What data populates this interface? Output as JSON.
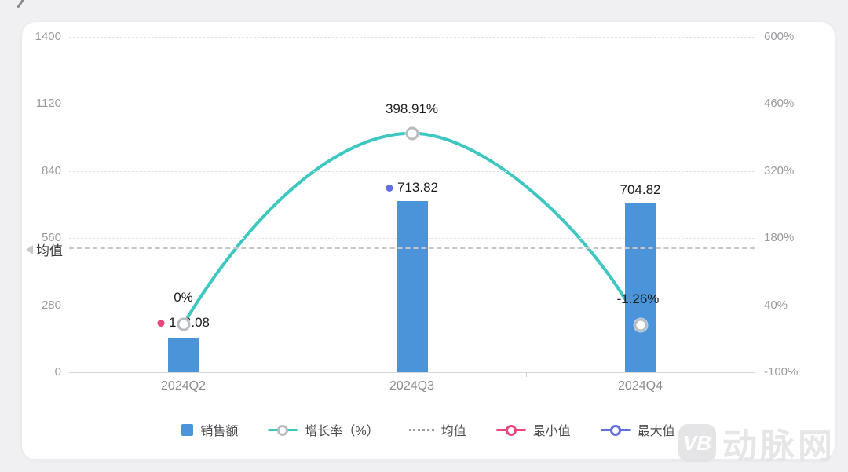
{
  "page": {
    "background": "#f0f0f2",
    "card_background": "#ffffff"
  },
  "chart_data": {
    "type": "bar",
    "subtype": "bar+line combo",
    "categories": [
      "2024Q2",
      "2024Q3",
      "2024Q4"
    ],
    "series": [
      {
        "name": "销售额",
        "type": "bar",
        "color": "#4b94d9",
        "values": [
          143.08,
          713.82,
          704.82
        ],
        "labels": [
          "143.08",
          "713.82",
          "704.82"
        ]
      },
      {
        "name": "增长率（%）",
        "type": "line",
        "color": "#3ec6c1",
        "values": [
          0,
          398.91,
          -1.26
        ],
        "labels": [
          "0%",
          "398.91%",
          "-1.26%"
        ]
      }
    ],
    "left_axis": {
      "ticks": [
        "1400",
        "1120",
        "840",
        "560",
        "280",
        "0"
      ],
      "min": 0,
      "max": 1400
    },
    "right_axis": {
      "ticks": [
        "600%",
        "460%",
        "320%",
        "180%",
        "40%",
        "-100%"
      ],
      "min": -100,
      "max": 600
    },
    "mean": {
      "label": "均值",
      "value": 520.57
    },
    "min_marker": {
      "category_index": 0,
      "color": "#e8477d"
    },
    "max_marker": {
      "category_index": 1,
      "color": "#5f6ee0"
    },
    "legend": [
      {
        "label": "销售额",
        "swatch": "bar",
        "color": "#4b94d9"
      },
      {
        "label": "增长率（%）",
        "swatch": "line",
        "color": "#3ec6c1"
      },
      {
        "label": "均值",
        "swatch": "dash",
        "color": "#9d9da1"
      },
      {
        "label": "最小值",
        "swatch": "ring",
        "color": "#e8477d"
      },
      {
        "label": "最大值",
        "swatch": "ring",
        "color": "#5f6ee0"
      }
    ],
    "grid": true,
    "legend_position": "bottom",
    "marker_ring_color": "#b9bdc2"
  },
  "watermark": {
    "logo_text": "VB",
    "brand": "动脉网"
  }
}
